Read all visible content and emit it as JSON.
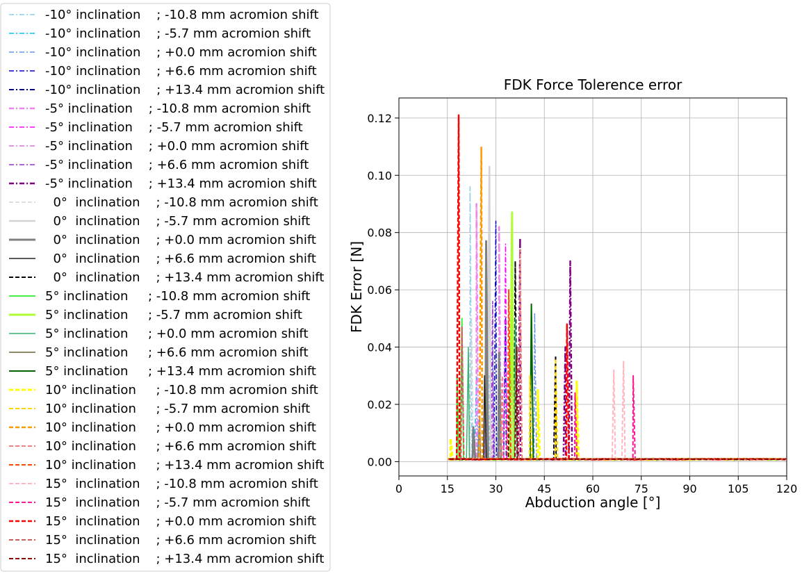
{
  "chart_data": {
    "type": "line",
    "title": "FDK Force Tolerence error",
    "xlabel": "Abduction angle [°]",
    "ylabel": "FDK Error [N]",
    "xlim": [
      0,
      120
    ],
    "ylim": [
      -0.005,
      0.127
    ],
    "xticks": [
      0,
      15,
      30,
      45,
      60,
      75,
      90,
      105,
      120
    ],
    "yticks": [
      0.0,
      0.02,
      0.04,
      0.06,
      0.08,
      0.1,
      0.12
    ],
    "xtick_labels": [
      "0",
      "15",
      "30",
      "45",
      "60",
      "75",
      "90",
      "105",
      "120"
    ],
    "ytick_labels": [
      "0.00",
      "0.02",
      "0.04",
      "0.06",
      "0.08",
      "0.10",
      "0.12"
    ],
    "grid": true,
    "legend_position": "outside-left",
    "series": [
      {
        "name": "-10° inclination    ; -10.8 mm acromion shift",
        "color": "#87ceeb",
        "dash": "dashdot",
        "width": 1.5,
        "peaks": [
          [
            22,
            0.096
          ],
          [
            28,
            0.03
          ]
        ]
      },
      {
        "name": "-10° inclination    ; -5.7 mm acromion shift",
        "color": "#00bfff",
        "dash": "dashdot",
        "width": 1.5,
        "peaks": [
          [
            24,
            0.03
          ]
        ]
      },
      {
        "name": "-10° inclination    ; +0.0 mm acromion shift",
        "color": "#6495ed",
        "dash": "dashdot",
        "width": 1.5,
        "peaks": [
          [
            42,
            0.052
          ],
          [
            29,
            0.04
          ]
        ]
      },
      {
        "name": "-10° inclination    ; +6.6 mm acromion shift",
        "color": "#0000cd",
        "dash": "dashdot",
        "width": 1.5,
        "peaks": [
          [
            30,
            0.084
          ],
          [
            33,
            0.05
          ]
        ]
      },
      {
        "name": "-10° inclination    ; +13.4 mm acromion shift",
        "color": "#000080",
        "dash": "dashdot",
        "width": 2,
        "peaks": [
          [
            31,
            0.04
          ]
        ]
      },
      {
        "name": "-5° inclination    ; -10.8 mm acromion shift",
        "color": "#ee82ee",
        "dash": "dashdot",
        "width": 2.5,
        "peaks": [
          [
            24,
            0.09
          ],
          [
            31,
            0.082
          ]
        ]
      },
      {
        "name": "-5° inclination    ; -5.7 mm acromion shift",
        "color": "#ff00ff",
        "dash": "dashdot",
        "width": 1.5,
        "peaks": [
          [
            33,
            0.076
          ],
          [
            27,
            0.03
          ]
        ]
      },
      {
        "name": "-5° inclination    ; +0.0 mm acromion shift",
        "color": "#da70d6",
        "dash": "dashdot",
        "width": 1.5,
        "peaks": [
          [
            29,
            0.03
          ]
        ]
      },
      {
        "name": "-5° inclination    ; +6.6 mm acromion shift",
        "color": "#9932cc",
        "dash": "dashdot",
        "width": 1.5,
        "peaks": [
          [
            29,
            0.056
          ],
          [
            35,
            0.04
          ]
        ]
      },
      {
        "name": "-5° inclination    ; +13.4 mm acromion shift",
        "color": "#800080",
        "dash": "dashdot",
        "width": 2.5,
        "peaks": [
          [
            37.5,
            0.078
          ],
          [
            53,
            0.07
          ],
          [
            51.5,
            0.04
          ]
        ]
      },
      {
        "name": "  0°  inclination    ; -10.8 mm acromion shift",
        "color": "#d3d3d3",
        "dash": "dashed",
        "width": 1.5,
        "peaks": [
          [
            22.5,
            0.05
          ]
        ]
      },
      {
        "name": "  0°  inclination    ; -5.7 mm acromion shift",
        "color": "#d3d3d3",
        "dash": "solid",
        "width": 2.5,
        "peaks": [
          [
            28,
            0.103
          ]
        ]
      },
      {
        "name": "  0°  inclination    ; +0.0 mm acromion shift",
        "color": "#808080",
        "dash": "solid",
        "width": 3,
        "peaks": [
          [
            27,
            0.077
          ],
          [
            31,
            0.038
          ],
          [
            23,
            0.012
          ]
        ]
      },
      {
        "name": "  0°  inclination    ; +6.6 mm acromion shift",
        "color": "#222222",
        "dash": "solid",
        "width": 1.5,
        "peaks": [
          [
            26.5,
            0.03
          ]
        ]
      },
      {
        "name": "  0°  inclination    ; +13.4 mm acromion shift",
        "color": "#000000",
        "dash": "dashed",
        "width": 2,
        "peaks": [
          [
            36,
            0.07
          ],
          [
            48.5,
            0.037
          ],
          [
            34.5,
            0.04
          ]
        ]
      },
      {
        "name": "5° inclination     ; -10.8 mm acromion shift",
        "color": "#44ee44",
        "dash": "solid",
        "width": 2,
        "peaks": [
          [
            19.5,
            0.05
          ],
          [
            18,
            0.03
          ]
        ]
      },
      {
        "name": "5° inclination     ; -5.7 mm acromion shift",
        "color": "#adff2f",
        "dash": "solid",
        "width": 3,
        "peaks": [
          [
            35,
            0.087
          ]
        ]
      },
      {
        "name": "5° inclination     ; +0.0 mm acromion shift",
        "color": "#3cb371",
        "dash": "solid",
        "width": 1.5,
        "peaks": [
          [
            21.5,
            0.04
          ],
          [
            36,
            0.05
          ]
        ]
      },
      {
        "name": "5° inclination     ; +6.6 mm acromion shift",
        "color": "#8b8b6a",
        "dash": "solid",
        "width": 2,
        "peaks": [
          [
            25,
            0.015
          ]
        ]
      },
      {
        "name": "5° inclination     ; +13.4 mm acromion shift",
        "color": "#006400",
        "dash": "solid",
        "width": 2,
        "peaks": [
          [
            41,
            0.055
          ]
        ]
      },
      {
        "name": "10° inclination     ; -10.8 mm acromion shift",
        "color": "#ffff00",
        "dash": "dashed",
        "width": 3,
        "peaks": [
          [
            55,
            0.028
          ],
          [
            43,
            0.025
          ],
          [
            16,
            0.008
          ]
        ]
      },
      {
        "name": "10° inclination     ; -5.7 mm acromion shift",
        "color": "#ffd700",
        "dash": "dashed",
        "width": 2,
        "peaks": [
          [
            48.5,
            0.036
          ],
          [
            40.5,
            0.03
          ]
        ]
      },
      {
        "name": "10° inclination     ; +0.0 mm acromion shift",
        "color": "#ff9900",
        "dash": "dashed",
        "width": 2.5,
        "peaks": [
          [
            25.5,
            0.11
          ]
        ]
      },
      {
        "name": "10° inclination     ; +6.6 mm acromion shift",
        "color": "#f08080",
        "dash": "dashed",
        "width": 2,
        "peaks": [
          [
            37.5,
            0.074
          ],
          [
            32,
            0.03
          ]
        ]
      },
      {
        "name": "10° inclination     ; +13.4 mm acromion shift",
        "color": "#ff4500",
        "dash": "dashed",
        "width": 2,
        "peaks": [
          [
            34,
            0.06
          ]
        ]
      },
      {
        "name": "15°  inclination    ; -10.8 mm acromion shift",
        "color": "#ffb6c1",
        "dash": "dashed",
        "width": 2,
        "peaks": [
          [
            66.5,
            0.032
          ],
          [
            69.5,
            0.035
          ]
        ]
      },
      {
        "name": "15°  inclination    ; -5.7 mm acromion shift",
        "color": "#ff1493",
        "dash": "dashed",
        "width": 2,
        "peaks": [
          [
            72.5,
            0.03
          ],
          [
            54.5,
            0.024
          ]
        ]
      },
      {
        "name": "15°  inclination    ; +0.0 mm acromion shift",
        "color": "#ff0000",
        "dash": "dashed",
        "width": 2.5,
        "peaks": [
          [
            18.5,
            0.121
          ],
          [
            52,
            0.048
          ]
        ]
      },
      {
        "name": "15°  inclination    ; +6.6 mm acromion shift",
        "color": "#cd5c5c",
        "dash": "dashed",
        "width": 2,
        "peaks": [
          [
            19.5,
            0.047
          ]
        ]
      },
      {
        "name": "15°  inclination    ; +13.4 mm acromion shift",
        "color": "#8b0000",
        "dash": "dashed",
        "width": 2,
        "peaks": [
          [
            36.5,
            0.04
          ]
        ]
      }
    ]
  }
}
